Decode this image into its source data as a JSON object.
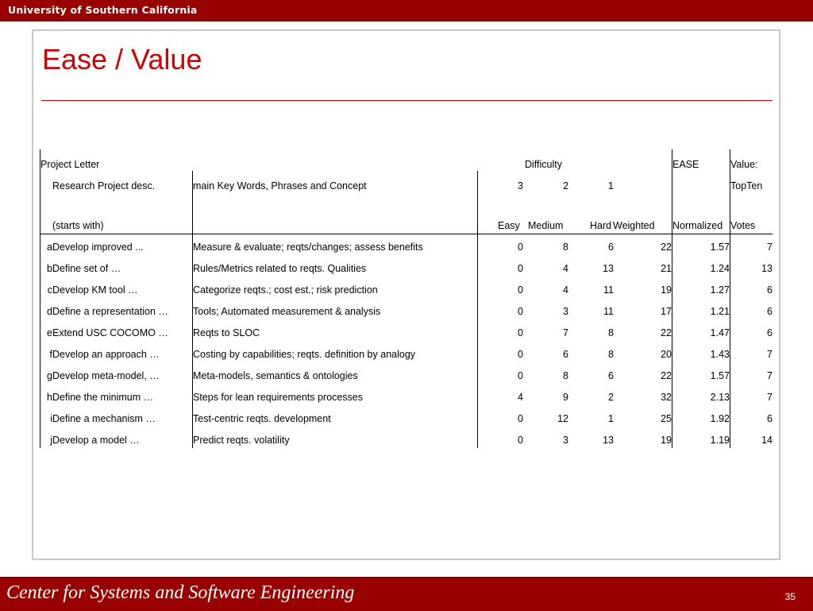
{
  "header": {
    "university": "University of Southern California"
  },
  "slide": {
    "title": "Ease / Value"
  },
  "table": {
    "header_row1": {
      "project_letter": "Project Letter",
      "difficulty": "Difficulty",
      "ease": "EASE",
      "value": "Value:"
    },
    "header_row2": {
      "desc": "Research Project desc.",
      "keywords": "main Key Words, Phrases and Concept",
      "w_easy": "3",
      "w_medium": "2",
      "w_hard": "1",
      "topten": "TopTen"
    },
    "header_row3": {
      "starts": "(starts with)",
      "easy": "Easy",
      "medium": "Medium",
      "hard": "Hard",
      "weighted": "Weighted",
      "normalized": "Normalized",
      "votes": "Votes"
    },
    "rows": [
      {
        "letter": "a",
        "desc": "Develop improved ...",
        "keywords": "Measure & evaluate; reqts/changes; assess benefits",
        "easy": "0",
        "medium": "8",
        "hard": "6",
        "weighted": "22",
        "normalized": "1.57",
        "votes": "7"
      },
      {
        "letter": "b",
        "desc": "Define set of …",
        "keywords": "Rules/Metrics related to reqts. Qualities",
        "easy": "0",
        "medium": "4",
        "hard": "13",
        "weighted": "21",
        "normalized": "1.24",
        "votes": "13"
      },
      {
        "letter": "c",
        "desc": "Develop KM tool …",
        "keywords": "Categorize reqts.; cost est.; risk prediction",
        "easy": "0",
        "medium": "4",
        "hard": "11",
        "weighted": "19",
        "normalized": "1.27",
        "votes": "6"
      },
      {
        "letter": "d",
        "desc": "Define a representation …",
        "keywords": "Tools; Automated measurement & analysis",
        "easy": "0",
        "medium": "3",
        "hard": "11",
        "weighted": "17",
        "normalized": "1.21",
        "votes": "6"
      },
      {
        "letter": "e",
        "desc": "Extend USC COCOMO …",
        "keywords": "Reqts to SLOC",
        "easy": "0",
        "medium": "7",
        "hard": "8",
        "weighted": "22",
        "normalized": "1.47",
        "votes": "6"
      },
      {
        "letter": "f",
        "desc": "Develop an approach …",
        "keywords": "Costing by capabilities; reqts. definition by analogy",
        "easy": "0",
        "medium": "6",
        "hard": "8",
        "weighted": "20",
        "normalized": "1.43",
        "votes": "7"
      },
      {
        "letter": "g",
        "desc": "Develop meta-model, …",
        "keywords": "Meta-models, semantics & ontologies",
        "easy": "0",
        "medium": "8",
        "hard": "6",
        "weighted": "22",
        "normalized": "1.57",
        "votes": "7"
      },
      {
        "letter": "h",
        "desc": "Define the minimum …",
        "keywords": "Steps for lean requirements processes",
        "easy": "4",
        "medium": "9",
        "hard": "2",
        "weighted": "32",
        "normalized": "2.13",
        "votes": "7"
      },
      {
        "letter": "i",
        "desc": "Define a mechanism …",
        "keywords": "Test-centric reqts. development",
        "easy": "0",
        "medium": "12",
        "hard": "1",
        "weighted": "25",
        "normalized": "1.92",
        "votes": "6"
      },
      {
        "letter": "j",
        "desc": "Develop a model …",
        "keywords": "Predict reqts. volatility",
        "easy": "0",
        "medium": "3",
        "hard": "13",
        "weighted": "19",
        "normalized": "1.19",
        "votes": "14"
      }
    ]
  },
  "footer": {
    "center": "Center for Systems and Software Engineering",
    "page_number": "35"
  },
  "colors": {
    "banner": "#990000",
    "title": "#cc0000",
    "frame": "#c8c8c8"
  }
}
